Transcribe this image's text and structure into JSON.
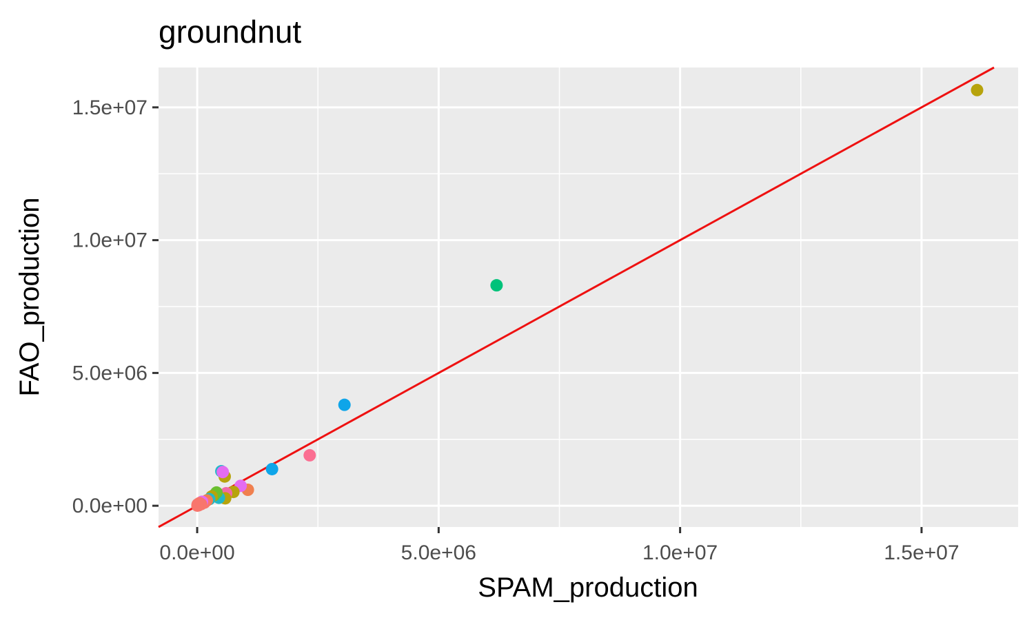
{
  "chart_data": {
    "type": "scatter",
    "title": "groundnut",
    "xlabel": "SPAM_production",
    "ylabel": "FAO_production",
    "xlim": [
      -800000,
      17000000
    ],
    "ylim": [
      -800000,
      16500000
    ],
    "x_ticks": [
      0,
      5000000,
      10000000,
      15000000
    ],
    "x_tick_labels": [
      "0.0e+00",
      "5.0e+06",
      "1.0e+07",
      "1.5e+07"
    ],
    "x_minor": [
      2500000,
      7500000,
      12500000
    ],
    "y_ticks": [
      0,
      5000000,
      10000000,
      15000000
    ],
    "y_tick_labels": [
      "0.0e+00",
      "5.0e+06",
      "1.0e+07",
      "1.5e+07"
    ],
    "y_minor": [
      2500000,
      7500000,
      12500000
    ],
    "grid": true,
    "background": "#ebebeb",
    "reference_line": {
      "type": "identity",
      "slope": 1,
      "intercept": 0,
      "color": "#ee1111"
    },
    "points": [
      {
        "x": 16150000,
        "y": 15650000,
        "color": "#b7a30c"
      },
      {
        "x": 6200000,
        "y": 8300000,
        "color": "#00c27a"
      },
      {
        "x": 3050000,
        "y": 3800000,
        "color": "#0ea5e9"
      },
      {
        "x": 2330000,
        "y": 1900000,
        "color": "#fb6f92"
      },
      {
        "x": 1550000,
        "y": 1380000,
        "color": "#0ea5e9"
      },
      {
        "x": 1050000,
        "y": 600000,
        "color": "#f0804f"
      },
      {
        "x": 900000,
        "y": 750000,
        "color": "#e46cf0"
      },
      {
        "x": 750000,
        "y": 520000,
        "color": "#b7a30c"
      },
      {
        "x": 570000,
        "y": 1100000,
        "color": "#b7a30c"
      },
      {
        "x": 500000,
        "y": 1300000,
        "color": "#22b8c8"
      },
      {
        "x": 530000,
        "y": 1270000,
        "color": "#e46cf0"
      },
      {
        "x": 600000,
        "y": 470000,
        "color": "#f06aa6"
      },
      {
        "x": 580000,
        "y": 280000,
        "color": "#b7a30c"
      },
      {
        "x": 450000,
        "y": 300000,
        "color": "#22b8c8"
      },
      {
        "x": 400000,
        "y": 500000,
        "color": "#6abf30"
      },
      {
        "x": 350000,
        "y": 400000,
        "color": "#6abf30"
      },
      {
        "x": 300000,
        "y": 350000,
        "color": "#b7a30c"
      },
      {
        "x": 250000,
        "y": 250000,
        "color": "#22b8c8"
      },
      {
        "x": 200000,
        "y": 200000,
        "color": "#f0804f"
      },
      {
        "x": 150000,
        "y": 120000,
        "color": "#f8766d"
      },
      {
        "x": 100000,
        "y": 150000,
        "color": "#e46cf0"
      },
      {
        "x": 80000,
        "y": 60000,
        "color": "#f8766d"
      },
      {
        "x": 50000,
        "y": 100000,
        "color": "#f8766d"
      },
      {
        "x": 30000,
        "y": 20000,
        "color": "#f8766d"
      },
      {
        "x": 10000,
        "y": 50000,
        "color": "#f8766d"
      },
      {
        "x": 5000,
        "y": 5000,
        "color": "#f8766d"
      }
    ]
  }
}
